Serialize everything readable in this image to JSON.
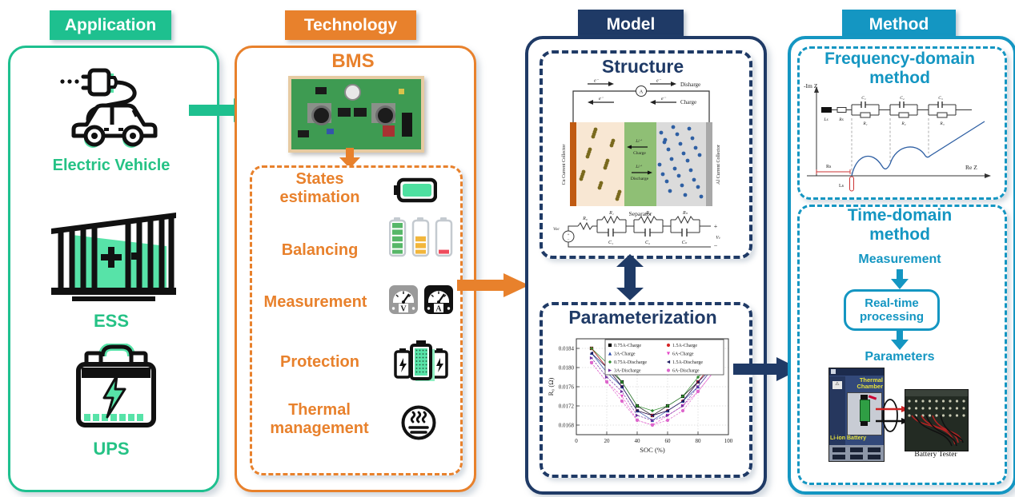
{
  "colors": {
    "application_teal": "#1EC08F",
    "technology_orange": "#E8812C",
    "model_navy": "#1F3A66",
    "method_cyan": "#1496C2",
    "accent_green": "#57E3A8",
    "label_green": "#25C285"
  },
  "headers": {
    "application": "Application",
    "technology": "Technology",
    "model": "Model",
    "method": "Method"
  },
  "application": {
    "items": [
      {
        "label": "Electric Vehicle",
        "icon": "electric-vehicle-icon"
      },
      {
        "label": "ESS",
        "icon": "ess-container-icon"
      },
      {
        "label": "UPS",
        "icon": "ups-battery-icon"
      }
    ]
  },
  "technology": {
    "title": "BMS",
    "functions": [
      {
        "label": "States estimation",
        "icon": "battery-soc-icon"
      },
      {
        "label": "Balancing",
        "icon": "battery-balancing-icon"
      },
      {
        "label": "Measurement",
        "icon": "voltmeter-ammeter-icon"
      },
      {
        "label": "Protection",
        "icon": "battery-pack-icon"
      },
      {
        "label": "Thermal management",
        "icon": "heat-icon"
      }
    ],
    "meters": {
      "volt": "V",
      "amp": "A"
    }
  },
  "model": {
    "structure": {
      "title": "Structure",
      "top_labels": {
        "discharge": "Disharge",
        "charge": "Charge",
        "electron": "e⁻",
        "ammeter": "A"
      },
      "cell": {
        "cu_collector": "Cu Current Collector",
        "al_collector": "Al Current Collector",
        "separator": "Separator",
        "li_ion": "Li⁺",
        "charge": "Charge",
        "discharge": "Discharge"
      },
      "circuit": {
        "voc": "Voc",
        "r0": "R₀",
        "r1": "R₁",
        "r2": "R₂",
        "rn": "Rₙ",
        "c1": "C₁",
        "c2": "C₂",
        "cn": "Cₙ",
        "vt": "Vₜ",
        "plus": "+",
        "minus": "−"
      }
    },
    "parameterization": {
      "title": "Parameterization"
    }
  },
  "method": {
    "frequency": {
      "title": "Frequency-domain method",
      "labels": {
        "im_axis": "-Im Z",
        "re_axis": "Re Z",
        "ls": "Ls",
        "rs": "Rs",
        "c1": "C₁",
        "c2": "C₂",
        "c3": "C₃",
        "r1": "R₁",
        "r2": "R₂",
        "r3": "R₃",
        "rs_mark": "Rs",
        "ls_mark": "Ls"
      }
    },
    "time": {
      "title": "Time-domain method",
      "measurement": "Measurement",
      "processing": "Real-time processing",
      "parameters": "Parameters",
      "thermal_chamber": "Thermal Chamber",
      "li_ion_battery": "Li-ion Battery",
      "battery_tester": "Battery Tester"
    }
  },
  "chart_data": {
    "type": "line",
    "title": "",
    "xlabel": "SOC (%)",
    "ylabel": "R₀ (Ω)",
    "x": [
      10,
      20,
      30,
      40,
      50,
      60,
      70,
      80,
      90
    ],
    "xlim": [
      0,
      100
    ],
    "ylim": [
      0.0166,
      0.0186
    ],
    "xticks": [
      0,
      20,
      40,
      60,
      80,
      100
    ],
    "yticks": [
      0.0168,
      0.0172,
      0.0176,
      0.018,
      0.0184
    ],
    "grid": true,
    "legend_position": "top",
    "series": [
      {
        "name": "0.75A-Charge",
        "marker": "square",
        "color": "#000000",
        "dashed": false,
        "values": [
          0.0184,
          0.018,
          0.0177,
          0.0172,
          0.017,
          0.0172,
          0.0174,
          0.0177,
          0.0181
        ]
      },
      {
        "name": "1.5A-Charge",
        "marker": "circle",
        "color": "#D62728",
        "dashed": false,
        "values": [
          0.0184,
          0.018,
          0.0176,
          0.0171,
          0.017,
          0.0171,
          0.0173,
          0.0177,
          0.0181
        ]
      },
      {
        "name": "3A-Charge",
        "marker": "triangle-up",
        "color": "#2B4BA8",
        "dashed": false,
        "values": [
          0.0183,
          0.0179,
          0.0176,
          0.0171,
          0.0169,
          0.0171,
          0.0173,
          0.0176,
          0.018
        ]
      },
      {
        "name": "6A-Charge",
        "marker": "triangle-down",
        "color": "#E649C8",
        "dashed": true,
        "values": [
          0.0181,
          0.0177,
          0.0174,
          0.0169,
          0.0168,
          0.017,
          0.0172,
          0.0175,
          0.0179
        ]
      },
      {
        "name": "0.75A-Discharge",
        "marker": "diamond",
        "color": "#2E8B2E",
        "dashed": false,
        "values": [
          0.0184,
          0.0181,
          0.0177,
          0.0172,
          0.0171,
          0.0172,
          0.0174,
          0.0178,
          0.0181
        ]
      },
      {
        "name": "1.5A-Discharge",
        "marker": "triangle-left",
        "color": "#1A1A5E",
        "dashed": false,
        "values": [
          0.0183,
          0.018,
          0.0176,
          0.0171,
          0.017,
          0.0171,
          0.0173,
          0.0177,
          0.018
        ]
      },
      {
        "name": "3A-Discharge",
        "marker": "triangle-right",
        "color": "#7030A0",
        "dashed": true,
        "values": [
          0.0182,
          0.0178,
          0.0175,
          0.017,
          0.0169,
          0.017,
          0.0172,
          0.0176,
          0.018
        ]
      },
      {
        "name": "6A-Discharge",
        "marker": "hexagon",
        "color": "#DD66CC",
        "dashed": true,
        "values": [
          0.0181,
          0.0177,
          0.0173,
          0.0169,
          0.0168,
          0.0169,
          0.0171,
          0.0175,
          0.0179
        ]
      }
    ]
  }
}
